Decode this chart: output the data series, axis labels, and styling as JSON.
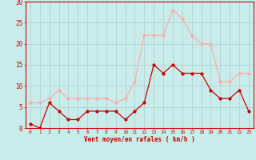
{
  "hours": [
    0,
    1,
    2,
    3,
    4,
    5,
    6,
    7,
    8,
    9,
    10,
    11,
    12,
    13,
    14,
    15,
    16,
    17,
    18,
    19,
    20,
    21,
    22,
    23
  ],
  "vent_moyen": [
    1,
    0,
    6,
    4,
    2,
    2,
    4,
    4,
    4,
    4,
    2,
    4,
    6,
    15,
    13,
    15,
    13,
    13,
    13,
    9,
    7,
    7,
    9,
    4
  ],
  "rafales": [
    6,
    6,
    7,
    9,
    7,
    7,
    7,
    7,
    7,
    6,
    7,
    11,
    22,
    22,
    22,
    28,
    26,
    22,
    20,
    20,
    11,
    11,
    13,
    13
  ],
  "color_moyen": "#cc0000",
  "color_rafales": "#ffaaaa",
  "bg_color": "#c8ecea",
  "grid_color": "#b0cccc",
  "xlabel": "Vent moyen/en rafales ( km/h )",
  "ylabel_ticks": [
    0,
    5,
    10,
    15,
    20,
    25,
    30
  ],
  "ylim": [
    0,
    30
  ],
  "xlim": [
    -0.5,
    23.5
  ]
}
